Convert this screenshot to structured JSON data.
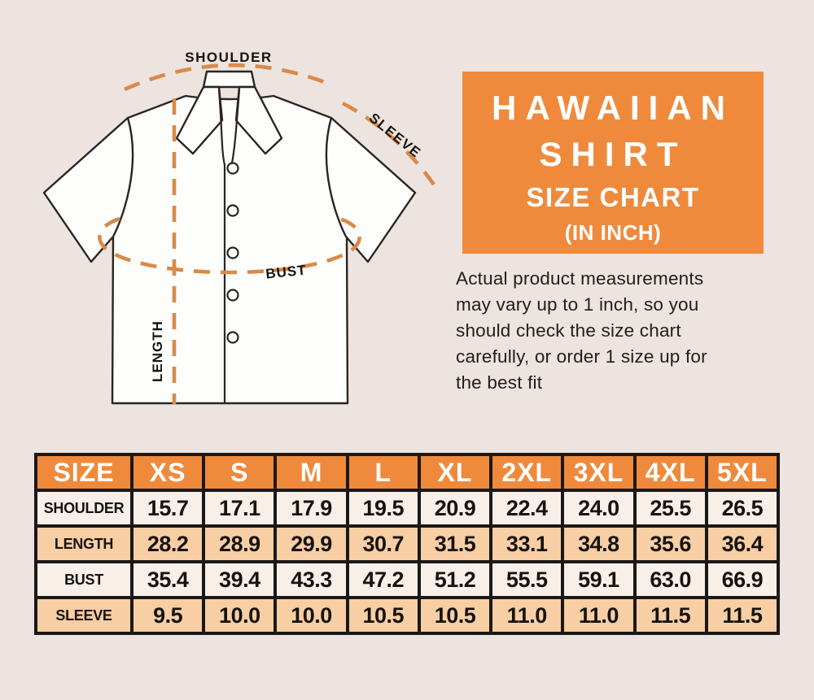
{
  "page": {
    "background": "#EDE4E0"
  },
  "colors": {
    "orange": "#EF8A3C",
    "dash_orange": "#D98A48",
    "row_cream": "#F8EFE8",
    "row_peach": "#F8CEA5",
    "table_border": "#1B1816",
    "ink": "#16130F"
  },
  "diagram": {
    "labels": {
      "shoulder": "SHOULDER",
      "sleeve": "SLEEVE",
      "bust": "BUST",
      "length": "LENGTH"
    }
  },
  "header": {
    "title_line1": "HAWAIIAN",
    "title_line2": "SHIRT",
    "subtitle": "SIZE CHART",
    "unit_note": "(IN INCH)"
  },
  "note": "Actual product measurements\nmay vary up to 1 inch, so you\nshould check the size chart\ncarefully, or order 1 size up for\nthe best fit",
  "chart_data": {
    "type": "table",
    "title": "Hawaiian Shirt Size Chart (in inch)",
    "unit": "inch",
    "columns": [
      "SIZE",
      "XS",
      "S",
      "M",
      "L",
      "XL",
      "2XL",
      "3XL",
      "4XL",
      "5XL"
    ],
    "rows": [
      {
        "label": "SHOULDER",
        "values": [
          "15.7",
          "17.1",
          "17.9",
          "19.5",
          "20.9",
          "22.4",
          "24.0",
          "25.5",
          "26.5"
        ]
      },
      {
        "label": "LENGTH",
        "values": [
          "28.2",
          "28.9",
          "29.9",
          "30.7",
          "31.5",
          "33.1",
          "34.8",
          "35.6",
          "36.4"
        ]
      },
      {
        "label": "BUST",
        "values": [
          "35.4",
          "39.4",
          "43.3",
          "47.2",
          "51.2",
          "55.5",
          "59.1",
          "63.0",
          "66.9"
        ]
      },
      {
        "label": "SLEEVE",
        "values": [
          "9.5",
          "10.0",
          "10.0",
          "10.5",
          "10.5",
          "11.0",
          "11.0",
          "11.5",
          "11.5"
        ]
      }
    ]
  }
}
